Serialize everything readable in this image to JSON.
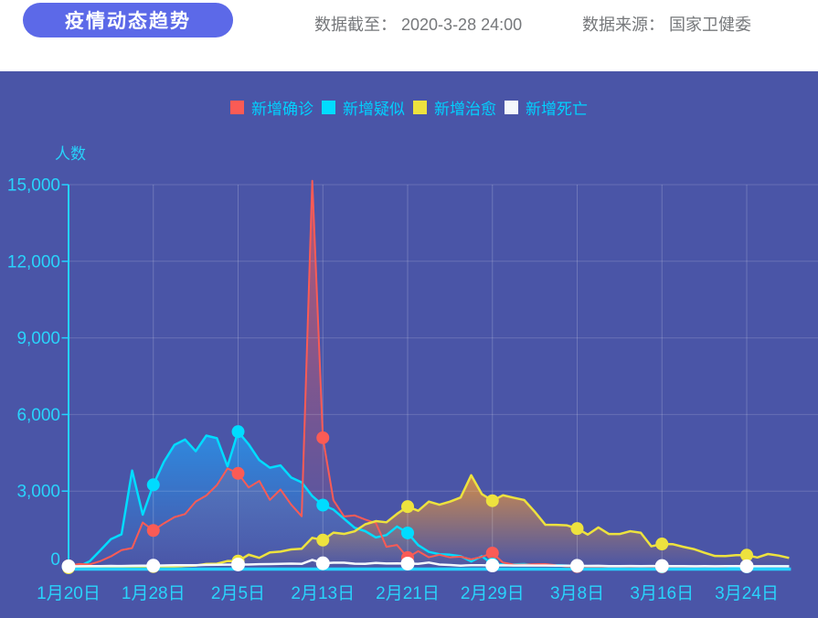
{
  "header": {
    "title": "疫情动态趋势",
    "data_cutoff_label": "数据截至：",
    "data_cutoff_value": "2020-3-28 24:00",
    "source_label": "数据来源：",
    "source_value": "国家卫健委"
  },
  "colors": {
    "header_bg": "#FFFFFF",
    "pill_bg": "#5C69E8",
    "pill_text": "#FFFFFF",
    "meta_text": "#76787B",
    "chart_bg": "#4A55A7",
    "legend_text": "#00D2FF",
    "axis_text": "#29D4FC",
    "axis_line": "#25D2FF",
    "grid_line_h": "rgba(255,255,255,0.16)",
    "grid_line_v": "rgba(255,255,255,0.20)"
  },
  "chart_data": {
    "type": "line",
    "title": "疫情动态趋势",
    "xlabel": "",
    "ylabel": "人数",
    "ylim": [
      0,
      15000
    ],
    "y_ticks": [
      "0",
      "3,000",
      "6,000",
      "9,000",
      "12,000",
      "15,000"
    ],
    "y_tick_values": [
      0,
      3000,
      6000,
      9000,
      12000,
      15000
    ],
    "x_tick_labels": [
      "1月20日",
      "1月28日",
      "2月5日",
      "2月13日",
      "2月21日",
      "2月29日",
      "3月8日",
      "3月16日",
      "3月24日"
    ],
    "x_start_date": "1月20日",
    "x_end_date": "3月28日",
    "x_tick_interval_days": 8,
    "marker_interval_days": 8,
    "n_days": 69,
    "grid": true,
    "legend_position": "top",
    "series": [
      {
        "name": "新增确诊",
        "color": "#FA5B55",
        "fill_from": "rgba(250,91,85,0.62)",
        "fill_to": "rgba(250,91,85,0)",
        "line_width": 2,
        "values": [
          77,
          149,
          131,
          259,
          444,
          688,
          769,
          1771,
          1459,
          1737,
          1982,
          2102,
          2590,
          2829,
          3235,
          3887,
          3694,
          3143,
          3399,
          2656,
          3062,
          2478,
          2015,
          15152,
          5090,
          2641,
          2009,
          2048,
          1886,
          1749,
          820,
          889,
          397,
          648,
          409,
          508,
          406,
          433,
          327,
          427,
          573,
          202,
          125,
          119,
          139,
          143,
          99,
          44,
          40,
          19,
          24,
          15,
          8,
          11,
          20,
          16,
          21,
          13,
          34,
          39,
          41,
          46,
          39,
          78,
          47,
          67,
          55,
          54,
          45
        ]
      },
      {
        "name": "新增疑似",
        "color": "#00DCFF",
        "fill_from": "rgba(44,141,227,0.95)",
        "fill_to": "rgba(44,141,227,0)",
        "line_width": 2.5,
        "values": [
          27,
          53,
          257,
          680,
          1118,
          1309,
          3806,
          2077,
          3248,
          4148,
          4812,
          5019,
          4562,
          5173,
          5072,
          3971,
          5328,
          4833,
          4214,
          3916,
          4008,
          3536,
          3342,
          2807,
          2450,
          2277,
          1918,
          1563,
          1432,
          1185,
          1277,
          1614,
          1361,
          882,
          620,
          530,
          508,
          452,
          248,
          452,
          141,
          129,
          129,
          143,
          102,
          102,
          99,
          84,
          59,
          17,
          31,
          33,
          16,
          17,
          41,
          29,
          35,
          23,
          23,
          31,
          39,
          35,
          29,
          35,
          33,
          44,
          58,
          63,
          56
        ]
      },
      {
        "name": "新增治愈",
        "color": "#EDE23E",
        "fill_from": "rgba(232,150,58,0.85)",
        "fill_to": "rgba(232,150,58,0)",
        "line_width": 2.5,
        "values": [
          0,
          1,
          3,
          6,
          3,
          11,
          9,
          15,
          43,
          21,
          47,
          72,
          85,
          147,
          157,
          262,
          261,
          510,
          387,
          600,
          632,
          716,
          744,
          1171,
          1081,
          1373,
          1323,
          1425,
          1701,
          1824,
          1779,
          2109,
          2393,
          2230,
          2589,
          2467,
          2589,
          2750,
          3622,
          2885,
          2623,
          2837,
          2742,
          2652,
          2189,
          1681,
          1678,
          1661,
          1535,
          1297,
          1578,
          1318,
          1318,
          1430,
          1370,
          838,
          930,
          923,
          819,
          730,
          590,
          459,
          456,
          491,
          491,
          401,
          537,
          477,
          383
        ]
      },
      {
        "name": "新增死亡",
        "color": "#F4F7FC",
        "fill_from": null,
        "fill_to": null,
        "line_width": 2.5,
        "values": [
          2,
          3,
          8,
          8,
          16,
          15,
          24,
          26,
          26,
          38,
          43,
          46,
          45,
          57,
          64,
          65,
          73,
          73,
          86,
          89,
          97,
          108,
          97,
          254,
          121,
          143,
          142,
          105,
          98,
          136,
          114,
          118,
          109,
          97,
          150,
          71,
          52,
          29,
          44,
          47,
          35,
          42,
          31,
          38,
          31,
          30,
          28,
          27,
          22,
          17,
          22,
          11,
          7,
          13,
          10,
          14,
          13,
          11,
          8,
          3,
          7,
          6,
          9,
          7,
          4,
          6,
          5,
          3,
          5
        ]
      }
    ]
  }
}
